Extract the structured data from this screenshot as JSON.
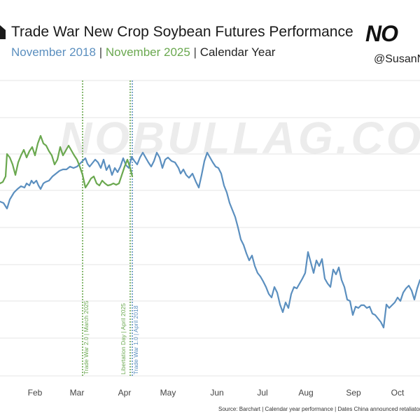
{
  "header": {
    "title": "Trade War New Crop Soybean Futures Performance",
    "subtitle_blue": "November 2018",
    "subtitle_sep1": " | ",
    "subtitle_green": "November 2025",
    "subtitle_sep2": " | ",
    "subtitle_rest": "Calendar Year",
    "brand": "NO",
    "handle": "@SusanN",
    "watermark": "NOBULLAG.COM"
  },
  "footer": {
    "source": "Source: Barchart | Calendar year performance | Dates China announced retaliatory tariffs"
  },
  "colors": {
    "series_2018": "#5b8fbf",
    "series_2025": "#6aa84f",
    "grid": "#e6e6e6"
  },
  "chart_data": {
    "type": "line",
    "x_ticks": [
      "Feb",
      "Mar",
      "Apr",
      "May",
      "Jun",
      "Jul",
      "Aug",
      "Sep",
      "Oct"
    ],
    "grid": true,
    "series": [
      {
        "name": "November 2018",
        "color": "#5b8fbf",
        "points": [
          [
            0,
            288
          ],
          [
            5,
            290
          ],
          [
            10,
            298
          ],
          [
            14,
            285
          ],
          [
            20,
            275
          ],
          [
            25,
            270
          ],
          [
            30,
            266
          ],
          [
            35,
            268
          ],
          [
            38,
            262
          ],
          [
            42,
            265
          ],
          [
            45,
            258
          ],
          [
            48,
            262
          ],
          [
            52,
            258
          ],
          [
            55,
            265
          ],
          [
            58,
            270
          ],
          [
            62,
            262
          ],
          [
            65,
            260
          ],
          [
            70,
            258
          ],
          [
            75,
            252
          ],
          [
            80,
            248
          ],
          [
            85,
            244
          ],
          [
            90,
            242
          ],
          [
            95,
            242
          ],
          [
            100,
            238
          ],
          [
            105,
            240
          ],
          [
            110,
            238
          ],
          [
            114,
            234
          ],
          [
            118,
            230
          ],
          [
            122,
            226
          ],
          [
            125,
            234
          ],
          [
            128,
            238
          ],
          [
            132,
            233
          ],
          [
            136,
            228
          ],
          [
            140,
            232
          ],
          [
            144,
            240
          ],
          [
            148,
            228
          ],
          [
            152,
            243
          ],
          [
            156,
            236
          ],
          [
            160,
            250
          ],
          [
            164,
            240
          ],
          [
            168,
            246
          ],
          [
            172,
            238
          ],
          [
            176,
            226
          ],
          [
            180,
            236
          ],
          [
            184,
            240
          ],
          [
            188,
            224
          ],
          [
            192,
            230
          ],
          [
            196,
            235
          ],
          [
            200,
            225
          ],
          [
            204,
            218
          ],
          [
            208,
            225
          ],
          [
            212,
            232
          ],
          [
            216,
            238
          ],
          [
            220,
            230
          ],
          [
            224,
            218
          ],
          [
            228,
            225
          ],
          [
            232,
            240
          ],
          [
            236,
            228
          ],
          [
            240,
            225
          ],
          [
            245,
            230
          ],
          [
            250,
            232
          ],
          [
            255,
            240
          ],
          [
            258,
            248
          ],
          [
            262,
            242
          ],
          [
            266,
            250
          ],
          [
            270,
            254
          ],
          [
            275,
            248
          ],
          [
            280,
            260
          ],
          [
            284,
            268
          ],
          [
            288,
            250
          ],
          [
            292,
            230
          ],
          [
            296,
            218
          ],
          [
            300,
            225
          ],
          [
            304,
            232
          ],
          [
            308,
            238
          ],
          [
            312,
            240
          ],
          [
            316,
            248
          ],
          [
            320,
            265
          ],
          [
            324,
            275
          ],
          [
            328,
            290
          ],
          [
            332,
            300
          ],
          [
            336,
            310
          ],
          [
            340,
            325
          ],
          [
            344,
            342
          ],
          [
            348,
            350
          ],
          [
            352,
            362
          ],
          [
            356,
            372
          ],
          [
            360,
            365
          ],
          [
            364,
            380
          ],
          [
            368,
            390
          ],
          [
            372,
            395
          ],
          [
            376,
            402
          ],
          [
            380,
            410
          ],
          [
            384,
            420
          ],
          [
            388,
            425
          ],
          [
            392,
            410
          ],
          [
            396,
            418
          ],
          [
            400,
            435
          ],
          [
            404,
            446
          ],
          [
            408,
            432
          ],
          [
            412,
            440
          ],
          [
            416,
            420
          ],
          [
            420,
            410
          ],
          [
            424,
            412
          ],
          [
            428,
            405
          ],
          [
            432,
            398
          ],
          [
            436,
            390
          ],
          [
            440,
            360
          ],
          [
            444,
            375
          ],
          [
            448,
            390
          ],
          [
            452,
            372
          ],
          [
            456,
            380
          ],
          [
            460,
            370
          ],
          [
            464,
            398
          ],
          [
            468,
            405
          ],
          [
            472,
            410
          ],
          [
            476,
            385
          ],
          [
            480,
            392
          ],
          [
            484,
            382
          ],
          [
            488,
            400
          ],
          [
            492,
            410
          ],
          [
            496,
            428
          ],
          [
            500,
            430
          ],
          [
            504,
            450
          ],
          [
            508,
            438
          ],
          [
            512,
            440
          ],
          [
            516,
            436
          ],
          [
            520,
            436
          ],
          [
            524,
            440
          ],
          [
            528,
            438
          ],
          [
            532,
            448
          ],
          [
            536,
            450
          ],
          [
            540,
            455
          ],
          [
            544,
            460
          ],
          [
            548,
            468
          ],
          [
            552,
            435
          ],
          [
            556,
            440
          ],
          [
            560,
            436
          ],
          [
            564,
            432
          ],
          [
            568,
            425
          ],
          [
            572,
            430
          ],
          [
            576,
            418
          ],
          [
            580,
            412
          ],
          [
            584,
            408
          ],
          [
            588,
            415
          ],
          [
            592,
            428
          ],
          [
            596,
            412
          ],
          [
            600,
            400
          ]
        ]
      },
      {
        "name": "November 2025",
        "color": "#6aa84f",
        "points": [
          [
            0,
            262
          ],
          [
            4,
            260
          ],
          [
            8,
            252
          ],
          [
            10,
            220
          ],
          [
            14,
            225
          ],
          [
            18,
            235
          ],
          [
            22,
            250
          ],
          [
            26,
            232
          ],
          [
            30,
            222
          ],
          [
            34,
            214
          ],
          [
            38,
            225
          ],
          [
            42,
            216
          ],
          [
            46,
            210
          ],
          [
            50,
            222
          ],
          [
            54,
            205
          ],
          [
            58,
            194
          ],
          [
            62,
            205
          ],
          [
            66,
            208
          ],
          [
            70,
            216
          ],
          [
            74,
            222
          ],
          [
            78,
            235
          ],
          [
            82,
            228
          ],
          [
            86,
            210
          ],
          [
            90,
            222
          ],
          [
            94,
            215
          ],
          [
            98,
            208
          ],
          [
            102,
            215
          ],
          [
            106,
            222
          ],
          [
            110,
            228
          ],
          [
            114,
            238
          ],
          [
            118,
            250
          ],
          [
            122,
            268
          ],
          [
            126,
            262
          ],
          [
            130,
            255
          ],
          [
            134,
            252
          ],
          [
            138,
            262
          ],
          [
            142,
            265
          ],
          [
            146,
            258
          ],
          [
            150,
            262
          ],
          [
            154,
            265
          ],
          [
            158,
            264
          ],
          [
            162,
            262
          ],
          [
            166,
            264
          ],
          [
            170,
            262
          ],
          [
            174,
            250
          ],
          [
            178,
            238
          ],
          [
            182,
            228
          ],
          [
            186,
            240
          ],
          [
            189,
            252
          ]
        ]
      }
    ],
    "annotations": [
      {
        "label": "Trade War 2.0 | March 2025",
        "color": "#6aa84f"
      },
      {
        "label": "Libertation Day | April 2025",
        "color": "#6aa84f"
      },
      {
        "label": "Trade War 1.0 | April 2018",
        "color": "#5b8fbf"
      }
    ]
  }
}
